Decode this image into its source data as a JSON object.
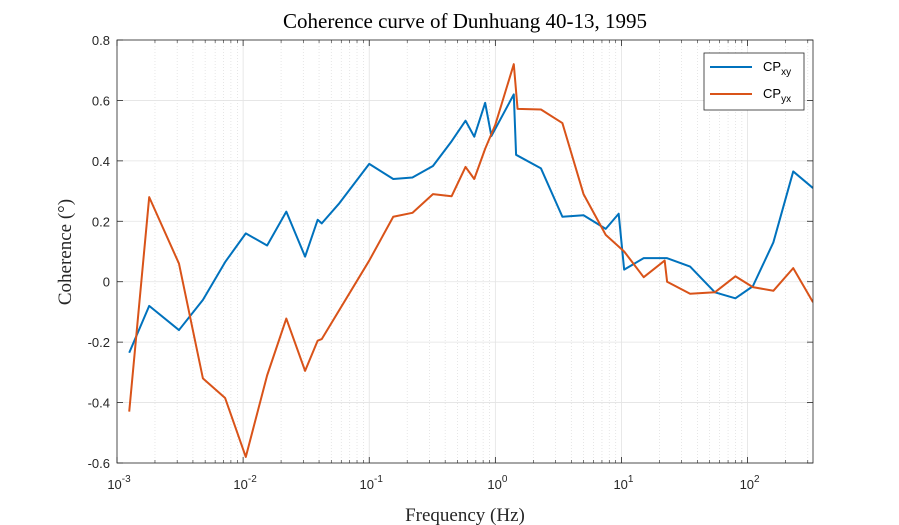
{
  "chart_data": {
    "type": "line",
    "title": "Coherence curve of Dunhuang 40-13, 1995",
    "xlabel": "Frequency (Hz)",
    "ylabel": "Coherence (°)",
    "xscale": "log",
    "xlim": [
      0.001,
      330
    ],
    "ylim": [
      -0.6,
      0.8
    ],
    "yticks": [
      -0.6,
      -0.4,
      -0.2,
      0,
      0.2,
      0.4,
      0.6,
      0.8
    ],
    "ytick_labels": [
      "-0.6",
      "-0.4",
      "-0.2",
      "0",
      "0.2",
      "0.4",
      "0.6",
      "0.8"
    ],
    "xticks": [
      {
        "base": "10",
        "exp": "-3",
        "value": 0.001
      },
      {
        "base": "10",
        "exp": "-2",
        "value": 0.01
      },
      {
        "base": "10",
        "exp": "-1",
        "value": 0.1
      },
      {
        "base": "10",
        "exp": "0",
        "value": 1
      },
      {
        "base": "10",
        "exp": "1",
        "value": 10
      },
      {
        "base": "10",
        "exp": "2",
        "value": 100
      }
    ],
    "grid": true,
    "legend_position": "top-right",
    "series": [
      {
        "name": "CP",
        "subscript": "xy",
        "color": "#0072BD",
        "x": [
          0.00125,
          0.0018,
          0.0031,
          0.0048,
          0.0072,
          0.0105,
          0.0155,
          0.022,
          0.031,
          0.039,
          0.042,
          0.058,
          0.1,
          0.155,
          0.22,
          0.32,
          0.45,
          0.58,
          0.68,
          0.83,
          0.93,
          1.4,
          1.46,
          2.3,
          3.4,
          5.0,
          7.5,
          9.5,
          10.5,
          15,
          23,
          35,
          55,
          80,
          110,
          160,
          230,
          330
        ],
        "y": [
          -0.235,
          -0.08,
          -0.16,
          -0.06,
          0.065,
          0.16,
          0.12,
          0.232,
          0.083,
          0.205,
          0.193,
          0.26,
          0.39,
          0.34,
          0.345,
          0.383,
          0.465,
          0.533,
          0.48,
          0.592,
          0.482,
          0.62,
          0.42,
          0.375,
          0.215,
          0.22,
          0.175,
          0.225,
          0.04,
          0.078,
          0.078,
          0.05,
          -0.035,
          -0.055,
          -0.015,
          0.13,
          0.365,
          0.31
        ]
      },
      {
        "name": "CP",
        "subscript": "yx",
        "color": "#D95319",
        "x": [
          0.00125,
          0.0018,
          0.0031,
          0.0048,
          0.0072,
          0.0105,
          0.0155,
          0.022,
          0.031,
          0.039,
          0.042,
          0.1,
          0.155,
          0.22,
          0.32,
          0.45,
          0.58,
          0.68,
          0.83,
          1.0,
          1.4,
          1.5,
          2.3,
          3.4,
          5.0,
          7.5,
          10.5,
          15,
          22,
          23,
          35,
          55,
          80,
          110,
          160,
          230,
          330
        ],
        "y": [
          -0.43,
          0.28,
          0.06,
          -0.32,
          -0.385,
          -0.58,
          -0.31,
          -0.122,
          -0.295,
          -0.195,
          -0.19,
          0.07,
          0.215,
          0.228,
          0.29,
          0.283,
          0.38,
          0.34,
          0.44,
          0.52,
          0.72,
          0.572,
          0.57,
          0.525,
          0.29,
          0.155,
          0.1,
          0.015,
          0.07,
          0.0,
          -0.04,
          -0.035,
          0.018,
          -0.018,
          -0.03,
          0.045,
          -0.068
        ]
      }
    ]
  }
}
